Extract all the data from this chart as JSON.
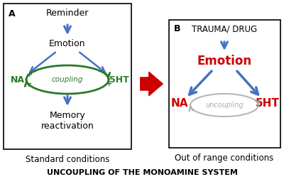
{
  "background": "#ffffff",
  "panel_a": {
    "label": "A",
    "reminder": "Reminder",
    "emotion": "Emotion",
    "na": "NA",
    "sht": "5HT",
    "coupling": "coupling",
    "memory": "Memory\nreactivation",
    "caption": "Standard conditions",
    "plus_na": "+",
    "minus_na": "-",
    "minus_sht": "-",
    "plus_sht": "+"
  },
  "panel_b": {
    "label": "B",
    "title": "TRAUMA/ DRUG",
    "emotion": "Emotion",
    "na": "NA",
    "sht": "5HT",
    "uncoupling": "uncoupling",
    "caption": "Out of range conditions"
  },
  "bottom_text": "UNCOUPLING OF THE MONOAMINE SYSTEM",
  "blue": "#4472c4",
  "green": "#2a7a2a",
  "red": "#cc0000",
  "gray": "#aaaaaa"
}
